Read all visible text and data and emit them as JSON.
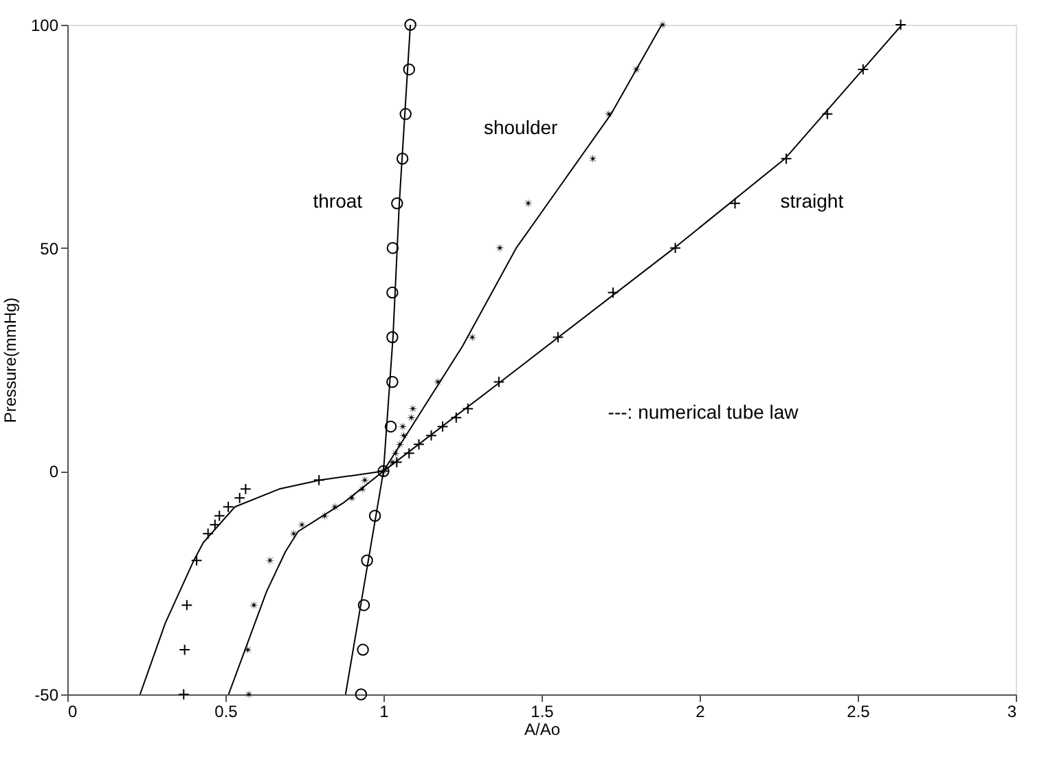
{
  "chart_data": {
    "type": "scatter",
    "xlabel": "A/Ao",
    "ylabel": "Pressure(mmHg)",
    "xlim": [
      0,
      3
    ],
    "ylim": [
      -50,
      100
    ],
    "xticks": [
      0,
      0.5,
      1,
      1.5,
      2,
      2.5,
      3
    ],
    "yticks": [
      -50,
      0,
      50,
      100
    ],
    "grid": false,
    "series": [
      {
        "type": "line",
        "marker": "none",
        "color": "#000000",
        "x": [
          0.88,
          0.94,
          1.0,
          1.03,
          1.05,
          1.085
        ],
        "values": [
          -50,
          -25,
          0,
          30,
          60,
          100
        ]
      },
      {
        "type": "line",
        "marker": "none",
        "color": "#000000",
        "x": [
          0.51,
          0.63,
          0.69,
          0.73,
          0.875,
          1.0,
          1.25,
          1.42,
          1.54,
          1.72,
          1.88
        ],
        "values": [
          -50,
          -27,
          -18,
          -13.5,
          -7,
          0,
          28,
          50,
          62,
          80,
          100
        ]
      },
      {
        "type": "line",
        "marker": "none",
        "color": "#000000",
        "x": [
          0.23,
          0.31,
          0.4,
          0.43,
          0.53,
          0.67,
          0.8,
          1.0,
          1.37,
          1.92,
          2.27,
          2.64
        ],
        "values": [
          -50,
          -34,
          -20,
          -16,
          -8,
          -4,
          -2,
          0,
          20,
          50,
          70,
          100
        ]
      },
      {
        "marker": "circle",
        "color": "#000000",
        "x": [
          1.085,
          1.081,
          1.07,
          1.06,
          1.043,
          1.029,
          1.028,
          1.028,
          1.028,
          1.023,
          1.0,
          0.973,
          0.948,
          0.938,
          0.935,
          0.929
        ],
        "values": [
          100,
          90,
          80,
          70,
          60,
          50,
          40,
          30,
          20,
          10,
          0,
          -10,
          -20,
          -30,
          -40,
          -50
        ]
      },
      {
        "marker": "star",
        "color": "#000000",
        "x": [
          1.883,
          1.8,
          1.713,
          1.662,
          1.458,
          1.368,
          1.281,
          1.172,
          1.093,
          1.088,
          1.061,
          1.064,
          1.052,
          1.038,
          1.028,
          1.0,
          0.941,
          0.933,
          0.9,
          0.846,
          0.814,
          0.742,
          0.716,
          0.641,
          0.59,
          0.571,
          0.574
        ],
        "values": [
          100,
          90,
          80,
          70,
          60,
          50,
          30,
          20,
          14,
          12,
          10,
          8,
          6,
          4,
          2,
          0,
          -2,
          -4,
          -6,
          -8,
          -10,
          -12,
          -14,
          -20,
          -30,
          -40,
          -50
        ]
      },
      {
        "marker": "cross",
        "color": "#000000",
        "x": [
          2.636,
          2.517,
          2.404,
          2.274,
          2.112,
          1.923,
          1.726,
          1.552,
          1.365,
          1.267,
          1.23,
          1.187,
          1.151,
          1.112,
          1.081,
          1.042,
          1.0,
          0.796,
          0.564,
          0.545,
          0.509,
          0.481,
          0.467,
          0.445,
          0.409,
          0.378,
          0.371,
          0.368
        ],
        "values": [
          100,
          90,
          80,
          70,
          60,
          50,
          40,
          30,
          20,
          14,
          12,
          10,
          8,
          6,
          4,
          2,
          0,
          -2,
          -4,
          -6,
          -8,
          -10,
          -12,
          -14,
          -20,
          -30,
          -40,
          -50
        ]
      }
    ],
    "annotations": [
      "throat",
      "shoulder",
      "straight",
      "---: numerical tube law"
    ]
  }
}
